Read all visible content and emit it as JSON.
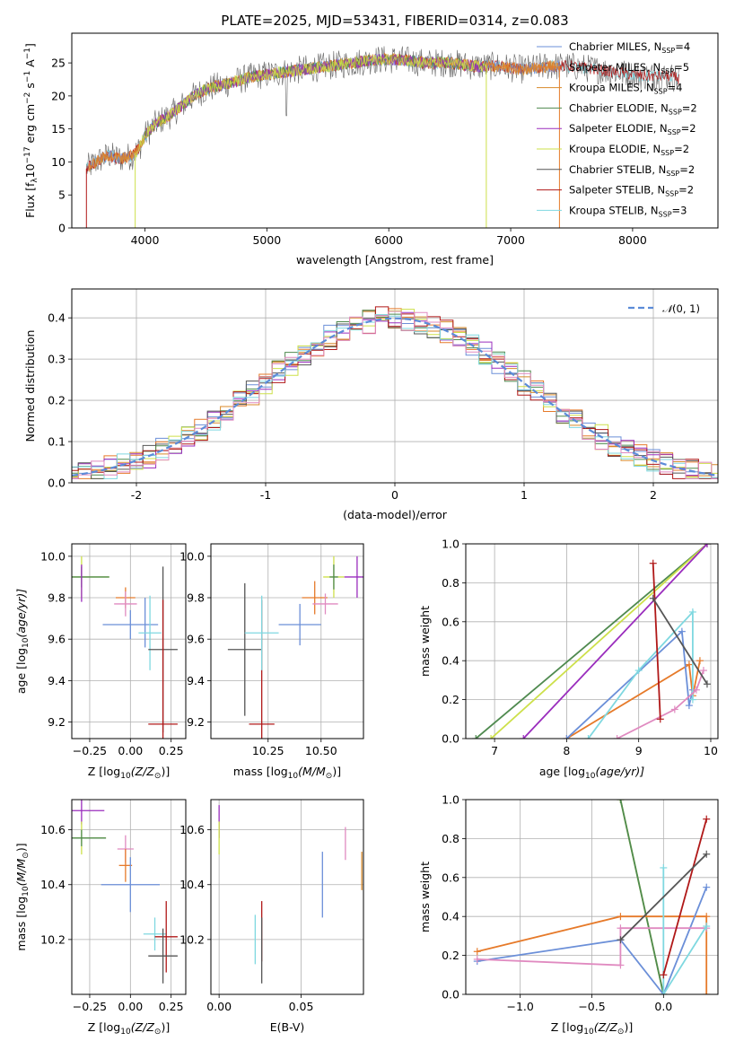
{
  "colors": {
    "Chabrier MILES": "#6b8fd8",
    "Salpeter MILES": "#e67a2a",
    "Kroupa MILES": "#d88a2a",
    "Chabrier ELODIE": "#4f8a4f",
    "Salpeter ELODIE": "#9a2dbd",
    "Kroupa ELODIE": "#cde04a",
    "Chabrier STELIB": "#555555",
    "Salpeter STELIB": "#b01818",
    "Kroupa STELIB": "#7fd8e0",
    "pink": "#e08ac0",
    "normal_curve": "#5b8bd8"
  },
  "chart_data": [
    {
      "id": "spectrum",
      "type": "line",
      "title": "PLATE=2025, MJD=53431, FIBERID=0314, z=0.083",
      "xlabel": "wavelength [Angstrom, rest frame]",
      "ylabel_main": "Flux [f",
      "ylabel_sub": "λ",
      "ylabel_rest": "10",
      "ylabel_sup1": "−17",
      "ylabel_after": " erg cm",
      "ylabel_sup2": "−2",
      "ylabel_s": " s",
      "ylabel_sup3": "−1",
      "ylabel_A": " A",
      "ylabel_sup4": "−1",
      "ylabel_end": "]",
      "xlim": [
        3400,
        8700
      ],
      "ylim": [
        0,
        29.5
      ],
      "xticks": [
        4000,
        5000,
        6000,
        7000,
        8000
      ],
      "yticks": [
        0,
        5,
        10,
        15,
        20,
        25
      ],
      "grid": false,
      "legend_position": "top-right",
      "legend": [
        {
          "label": "Chabrier MILES, N",
          "sub": "SSP",
          "tail": "=4"
        },
        {
          "label": "Salpeter MILES, N",
          "sub": "SSP",
          "tail": "=5"
        },
        {
          "label": "Kroupa MILES, N",
          "sub": "SSP",
          "tail": "=4"
        },
        {
          "label": "Chabrier ELODIE, N",
          "sub": "SSP",
          "tail": "=2"
        },
        {
          "label": "Salpeter ELODIE, N",
          "sub": "SSP",
          "tail": "=2"
        },
        {
          "label": "Kroupa ELODIE, N",
          "sub": "SSP",
          "tail": "=2"
        },
        {
          "label": "Chabrier STELIB, N",
          "sub": "SSP",
          "tail": "=2"
        },
        {
          "label": "Salpeter STELIB, N",
          "sub": "SSP",
          "tail": "=2"
        },
        {
          "label": "Kroupa STELIB, N",
          "sub": "SSP",
          "tail": "=3"
        }
      ],
      "continuum_anchor_x": [
        3520,
        3600,
        3700,
        3800,
        3900,
        3950,
        4000,
        4100,
        4200,
        4300,
        4400,
        4500,
        4700,
        4900,
        5100,
        5300,
        5500,
        5700,
        5900,
        6100,
        6300,
        6500,
        6700,
        6900,
        7100,
        7300,
        7500,
        7700,
        7900,
        8100,
        8300,
        8400
      ],
      "continuum_anchor_y": [
        9,
        10,
        11,
        10.5,
        11,
        12,
        14,
        16,
        17,
        18.5,
        20,
        21,
        22,
        23,
        23.5,
        24,
        24.5,
        25,
        25.5,
        25.5,
        25,
        25,
        24.5,
        24.5,
        24,
        24.5,
        24.5,
        24,
        23.5,
        23,
        23,
        22.5
      ]
    },
    {
      "id": "residual-histogram",
      "type": "histogram",
      "xlabel": "(data-model)/error",
      "ylabel": "Normed distribution",
      "xlim": [
        -2.5,
        2.5
      ],
      "ylim": [
        0,
        0.47
      ],
      "xticks": [
        -2,
        -1,
        0,
        1,
        2
      ],
      "yticks": [
        0.0,
        0.1,
        0.2,
        0.3,
        0.4
      ],
      "grid": true,
      "legend_position": "top-right",
      "legend_label": "N(0, 1)",
      "legend_prefix": "𝒩",
      "legend_suffix": "(0, 1)",
      "bin_width": 0.1
    },
    {
      "id": "age-vs-Z",
      "type": "scatter",
      "xlabel_main": "Z [log",
      "xlabel_sub": "10",
      "xlabel_rest": "(Z/Z",
      "xlabel_sub2": "⊙",
      "xlabel_end": ")]",
      "ylabel_main": "age  [log",
      "ylabel_sub": "10",
      "ylabel_rest": "(age/yr)]",
      "xlim": [
        -0.36,
        0.34
      ],
      "ylim": [
        9.12,
        10.06
      ],
      "xticks": [
        -0.25,
        0.0,
        0.25
      ],
      "xticklabels": [
        "−0.25",
        "0.00",
        "0.25"
      ],
      "yticks": [
        9.2,
        9.4,
        9.6,
        9.8,
        10.0
      ],
      "grid": true,
      "points": [
        {
          "series": "Kroupa ELODIE",
          "x": -0.3,
          "y": 9.9,
          "xerr": 0.17,
          "yerr": 0.1
        },
        {
          "series": "Chabrier ELODIE",
          "x": -0.3,
          "y": 9.9,
          "xerr": 0.17,
          "yerr": 0.05
        },
        {
          "series": "Salpeter ELODIE",
          "x": -0.3,
          "y": 9.87,
          "xerr": 0,
          "yerr": 0.09
        },
        {
          "series": "Salpeter MILES",
          "x": -0.03,
          "y": 9.8,
          "xerr": 0.06,
          "yerr": 0.05
        },
        {
          "series": "pink",
          "x": -0.03,
          "y": 9.77,
          "xerr": 0.07,
          "yerr": 0.06
        },
        {
          "series": "Chabrier MILES",
          "x": 0.0,
          "y": 9.67,
          "xerr": 0.17,
          "yerr": 0.07
        },
        {
          "series": "Chabrier MILES",
          "x": 0.09,
          "y": 9.68,
          "xerr": 0,
          "yerr": 0.12
        },
        {
          "series": "Kroupa STELIB",
          "x": 0.12,
          "y": 9.63,
          "xerr": 0.07,
          "yerr": 0.18
        },
        {
          "series": "Chabrier STELIB",
          "x": 0.2,
          "y": 9.55,
          "xerr": 0.09,
          "yerr": 0.4
        },
        {
          "series": "Salpeter STELIB",
          "x": 0.2,
          "y": 9.19,
          "xerr": 0.09,
          "yerr": 0.6
        }
      ]
    },
    {
      "id": "age-vs-mass",
      "type": "scatter",
      "xlabel_main": "mass [log",
      "xlabel_sub": "10",
      "xlabel_rest": "(M/M",
      "xlabel_sub2": "⊙",
      "xlabel_end": ")]",
      "xlim": [
        9.98,
        10.7
      ],
      "ylim": [
        9.12,
        10.06
      ],
      "xticks": [
        10.25,
        10.5
      ],
      "xticklabels": [
        "10.25",
        "10.50"
      ],
      "yticks": [
        9.2,
        9.4,
        9.6,
        9.8,
        10.0
      ],
      "grid": true,
      "points": [
        {
          "series": "Chabrier STELIB",
          "x": 10.14,
          "y": 9.55,
          "xerr": 0.08,
          "yerr": 0.32
        },
        {
          "series": "Salpeter STELIB",
          "x": 10.22,
          "y": 9.19,
          "xerr": 0.06,
          "yerr": 0.6
        },
        {
          "series": "Kroupa STELIB",
          "x": 10.22,
          "y": 9.63,
          "xerr": 0.08,
          "yerr": 0.18
        },
        {
          "series": "Chabrier MILES",
          "x": 10.4,
          "y": 9.67,
          "xerr": 0.1,
          "yerr": 0.1
        },
        {
          "series": "Salpeter MILES",
          "x": 10.47,
          "y": 9.8,
          "xerr": 0.06,
          "yerr": 0.08
        },
        {
          "series": "pink",
          "x": 10.52,
          "y": 9.77,
          "xerr": 0.06,
          "yerr": 0.05
        },
        {
          "series": "Kroupa ELODIE",
          "x": 10.56,
          "y": 9.9,
          "xerr": 0.05,
          "yerr": 0.1
        },
        {
          "series": "Chabrier ELODIE",
          "x": 10.56,
          "y": 9.9,
          "xerr": 0.02,
          "yerr": 0.06
        },
        {
          "series": "Salpeter ELODIE",
          "x": 10.67,
          "y": 9.9,
          "xerr": 0.06,
          "yerr": 0.1
        }
      ]
    },
    {
      "id": "weight-vs-age",
      "type": "line",
      "xlabel_main": "age  [log",
      "xlabel_sub": "10",
      "xlabel_rest": "(age/yr)]",
      "ylabel": "mass weight",
      "xlim": [
        6.6,
        10.1
      ],
      "ylim": [
        0,
        1.0
      ],
      "xticks": [
        7,
        8,
        9,
        10
      ],
      "yticks": [
        0.0,
        0.2,
        0.4,
        0.6,
        0.8,
        1.0
      ],
      "grid": true,
      "series": [
        {
          "name": "Chabrier ELODIE",
          "x": [
            6.74,
            9.95
          ],
          "y": [
            0.0,
            1.0
          ]
        },
        {
          "name": "Kroupa ELODIE",
          "x": [
            6.95,
            9.95
          ],
          "y": [
            0.0,
            1.0
          ]
        },
        {
          "name": "Salpeter ELODIE",
          "x": [
            7.4,
            9.95
          ],
          "y": [
            0.0,
            1.0
          ]
        },
        {
          "name": "Salpeter MILES",
          "x": [
            8.0,
            9.7,
            9.75,
            9.85
          ],
          "y": [
            0.0,
            0.38,
            0.22,
            0.4
          ]
        },
        {
          "name": "Chabrier MILES",
          "x": [
            8.0,
            9.6,
            9.7,
            9.75
          ],
          "y": [
            0.0,
            0.55,
            0.17,
            0.25
          ]
        },
        {
          "name": "Kroupa STELIB",
          "x": [
            8.3,
            9.0,
            9.75,
            9.75
          ],
          "y": [
            0.0,
            0.35,
            0.65,
            0.2
          ]
        },
        {
          "name": "pink",
          "x": [
            8.7,
            9.5,
            9.8,
            9.9
          ],
          "y": [
            0.0,
            0.15,
            0.25,
            0.35
          ]
        },
        {
          "name": "Salpeter STELIB",
          "x": [
            9.2,
            9.3
          ],
          "y": [
            0.9,
            0.1
          ]
        },
        {
          "name": "Chabrier STELIB",
          "x": [
            9.2,
            9.95
          ],
          "y": [
            0.72,
            0.28
          ]
        }
      ]
    },
    {
      "id": "mass-vs-Z",
      "type": "scatter",
      "xlabel_main": "Z [log",
      "xlabel_sub": "10",
      "xlabel_rest": "(Z/Z",
      "xlabel_sub2": "⊙",
      "xlabel_end": ")]",
      "ylabel_main": "mass [log",
      "ylabel_sub": "10",
      "ylabel_rest": "(M/M",
      "ylabel_sub2": "⊙",
      "ylabel_end": ")]",
      "xlim": [
        -0.36,
        0.34
      ],
      "ylim": [
        10.0,
        10.71
      ],
      "xticks": [
        -0.25,
        0.0,
        0.25
      ],
      "xticklabels": [
        "−0.25",
        "0.00",
        "0.25"
      ],
      "yticks": [
        10.2,
        10.4,
        10.6
      ],
      "grid": true,
      "points": [
        {
          "series": "Salpeter ELODIE",
          "x": -0.3,
          "y": 10.67,
          "xerr": 0.14,
          "yerr": 0.05
        },
        {
          "series": "Kroupa ELODIE",
          "x": -0.3,
          "y": 10.57,
          "xerr": 0.15,
          "yerr": 0.06
        },
        {
          "series": "Chabrier ELODIE",
          "x": -0.3,
          "y": 10.57,
          "xerr": 0.15,
          "yerr": 0.03
        },
        {
          "series": "pink",
          "x": -0.03,
          "y": 10.53,
          "xerr": 0.05,
          "yerr": 0.05
        },
        {
          "series": "Salpeter MILES",
          "x": -0.03,
          "y": 10.47,
          "xerr": 0.04,
          "yerr": 0.06
        },
        {
          "series": "Chabrier MILES",
          "x": 0.0,
          "y": 10.4,
          "xerr": 0.18,
          "yerr": 0.1
        },
        {
          "series": "Kroupa STELIB",
          "x": 0.15,
          "y": 10.22,
          "xerr": 0.07,
          "yerr": 0.06
        },
        {
          "series": "Salpeter STELIB",
          "x": 0.22,
          "y": 10.21,
          "xerr": 0.07,
          "yerr": 0.13
        },
        {
          "series": "Chabrier STELIB",
          "x": 0.2,
          "y": 10.14,
          "xerr": 0.09,
          "yerr": 0.1
        }
      ]
    },
    {
      "id": "mass-vs-EBV",
      "type": "scatter",
      "xlabel": "E(B-V)",
      "xlim": [
        -0.005,
        0.088
      ],
      "ylim": [
        10.0,
        10.71
      ],
      "xticks": [
        0.0,
        0.05
      ],
      "xticklabels": [
        "0.00",
        "0.05"
      ],
      "yticks": [
        10.2,
        10.4,
        10.6
      ],
      "grid": true,
      "points": [
        {
          "series": "Salpeter ELODIE",
          "x": 0.0,
          "y": 10.63,
          "yerr": 0.06
        },
        {
          "series": "Kroupa ELODIE",
          "x": 0.0,
          "y": 10.57,
          "yerr": 0.06
        },
        {
          "series": "Kroupa STELIB",
          "x": 0.022,
          "y": 10.2,
          "yerr": 0.09
        },
        {
          "series": "Salpeter STELIB",
          "x": 0.026,
          "y": 10.23,
          "yerr": 0.11
        },
        {
          "series": "Chabrier STELIB",
          "x": 0.026,
          "y": 10.16,
          "yerr": 0.12
        },
        {
          "series": "Chabrier MILES",
          "x": 0.063,
          "y": 10.4,
          "yerr": 0.12
        },
        {
          "series": "pink",
          "x": 0.077,
          "y": 10.55,
          "yerr": 0.06
        },
        {
          "series": "Kroupa MILES",
          "x": 0.087,
          "y": 10.45,
          "yerr": 0.07
        }
      ]
    },
    {
      "id": "weight-vs-Z",
      "type": "line",
      "xlabel_main": "Z [log",
      "xlabel_sub": "10",
      "xlabel_rest": "(Z/Z",
      "xlabel_sub2": "⊙",
      "xlabel_end": ")]",
      "ylabel": "mass weight",
      "xlim": [
        -1.38,
        0.38
      ],
      "ylim": [
        0,
        1.0
      ],
      "xticks": [
        -1.0,
        -0.5,
        0.0
      ],
      "xticklabels": [
        "−1.0",
        "−0.5",
        "0.0"
      ],
      "yticks": [
        0.0,
        0.2,
        0.4,
        0.6,
        0.8,
        1.0
      ],
      "grid": true,
      "series": [
        {
          "name": "Kroupa ELODIE",
          "x": [
            -0.3,
            0.0
          ],
          "y": [
            1.0,
            0.0
          ]
        },
        {
          "name": "Chabrier ELODIE",
          "x": [
            -0.3,
            0.0
          ],
          "y": [
            1.0,
            0.0
          ]
        },
        {
          "name": "Salpeter MILES",
          "x": [
            -1.3,
            -0.3,
            0.3,
            0.3
          ],
          "y": [
            0.22,
            0.4,
            0.4,
            0.0
          ]
        },
        {
          "name": "Chabrier MILES",
          "x": [
            -1.3,
            -0.3,
            0.0,
            0.3
          ],
          "y": [
            0.17,
            0.28,
            0.0,
            0.55
          ]
        },
        {
          "name": "pink",
          "x": [
            -1.3,
            -0.3,
            -0.3,
            0.3
          ],
          "y": [
            0.18,
            0.15,
            0.34,
            0.34
          ]
        },
        {
          "name": "Kroupa STELIB",
          "x": [
            0.0,
            0.0,
            0.3
          ],
          "y": [
            0.65,
            0.0,
            0.35
          ]
        },
        {
          "name": "Salpeter STELIB",
          "x": [
            0.0,
            0.3
          ],
          "y": [
            0.1,
            0.9
          ]
        },
        {
          "name": "Chabrier STELIB",
          "x": [
            -0.3,
            0.3
          ],
          "y": [
            0.28,
            0.72
          ]
        }
      ]
    }
  ]
}
